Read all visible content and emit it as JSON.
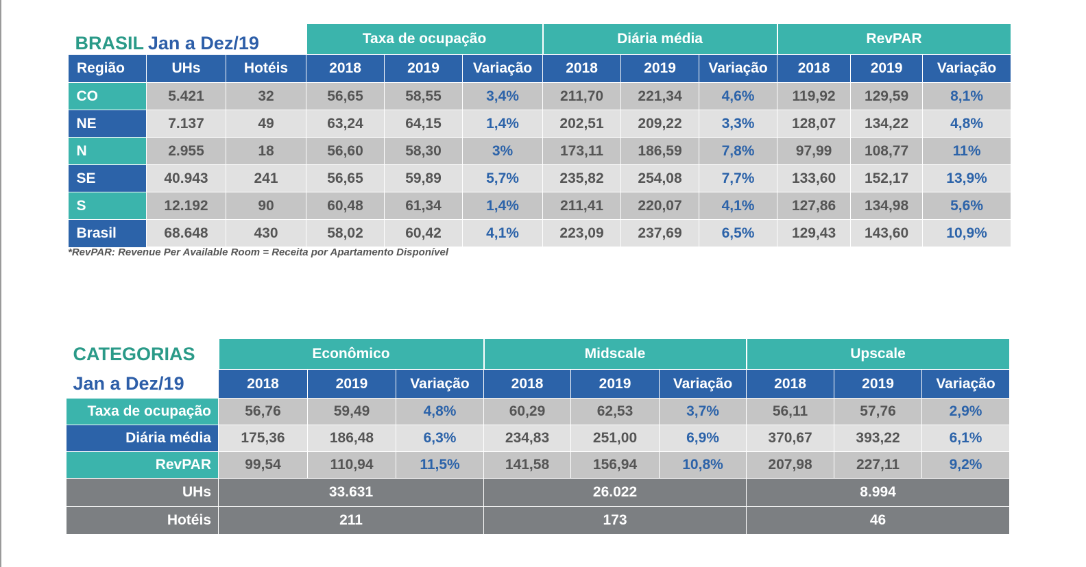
{
  "table1": {
    "title_main": "BRASIL",
    "title_sub": "Jan a Dez/19",
    "groups": [
      "Taxa de ocupação",
      "Diária média",
      "RevPAR"
    ],
    "headers": [
      "Região",
      "UHs",
      "Hotéis",
      "2018",
      "2019",
      "Variação",
      "2018",
      "2019",
      "Variação",
      "2018",
      "2019",
      "Variação"
    ],
    "rows": [
      {
        "region": "CO",
        "cells": [
          "5.421",
          "32",
          "56,65",
          "58,55",
          "3,4%",
          "211,70",
          "221,34",
          "4,6%",
          "119,92",
          "129,59",
          "8,1%"
        ]
      },
      {
        "region": "NE",
        "cells": [
          "7.137",
          "49",
          "63,24",
          "64,15",
          "1,4%",
          "202,51",
          "209,22",
          "3,3%",
          "128,07",
          "134,22",
          "4,8%"
        ]
      },
      {
        "region": "N",
        "cells": [
          "2.955",
          "18",
          "56,60",
          "58,30",
          "3%",
          "173,11",
          "186,59",
          "7,8%",
          "97,99",
          "108,77",
          "11%"
        ]
      },
      {
        "region": "SE",
        "cells": [
          "40.943",
          "241",
          "56,65",
          "59,89",
          "5,7%",
          "235,82",
          "254,08",
          "7,7%",
          "133,60",
          "152,17",
          "13,9%"
        ]
      },
      {
        "region": "S",
        "cells": [
          "12.192",
          "90",
          "60,48",
          "61,34",
          "1,4%",
          "211,41",
          "220,07",
          "4,1%",
          "127,86",
          "134,98",
          "5,6%"
        ]
      },
      {
        "region": "Brasil",
        "cells": [
          "68.648",
          "430",
          "58,02",
          "60,42",
          "4,1%",
          "223,09",
          "237,69",
          "6,5%",
          "129,43",
          "143,60",
          "10,9%"
        ]
      }
    ],
    "note": "*RevPAR: Revenue Per Available Room = Receita por Apartamento Disponível"
  },
  "table2": {
    "title_main": "CATEGORIAS",
    "title_sub": "Jan a Dez/19",
    "groups": [
      "Econômico",
      "Midscale",
      "Upscale"
    ],
    "headers": [
      "2018",
      "2019",
      "Variação",
      "2018",
      "2019",
      "Variação",
      "2018",
      "2019",
      "Variação"
    ],
    "rows": [
      {
        "label": "Taxa de ocupação",
        "cells": [
          "56,76",
          "59,49",
          "4,8%",
          "60,29",
          "62,53",
          "3,7%",
          "56,11",
          "57,76",
          "2,9%"
        ]
      },
      {
        "label": "Diária média",
        "cells": [
          "175,36",
          "186,48",
          "6,3%",
          "234,83",
          "251,00",
          "6,9%",
          "370,67",
          "393,22",
          "6,1%"
        ]
      },
      {
        "label": "RevPAR",
        "cells": [
          "99,54",
          "110,94",
          "11,5%",
          "141,58",
          "156,94",
          "10,8%",
          "207,98",
          "227,11",
          "9,2%"
        ]
      }
    ],
    "uhs": {
      "label": "UHs",
      "values": [
        "33.631",
        "26.022",
        "8.994"
      ]
    },
    "hoteis": {
      "label": "Hotéis",
      "values": [
        "211",
        "173",
        "46"
      ]
    }
  },
  "colors": {
    "teal": "#3bb4ac",
    "blue": "#2c63a9",
    "gray": "#7c7f82",
    "title_green": "#2a9a88"
  }
}
